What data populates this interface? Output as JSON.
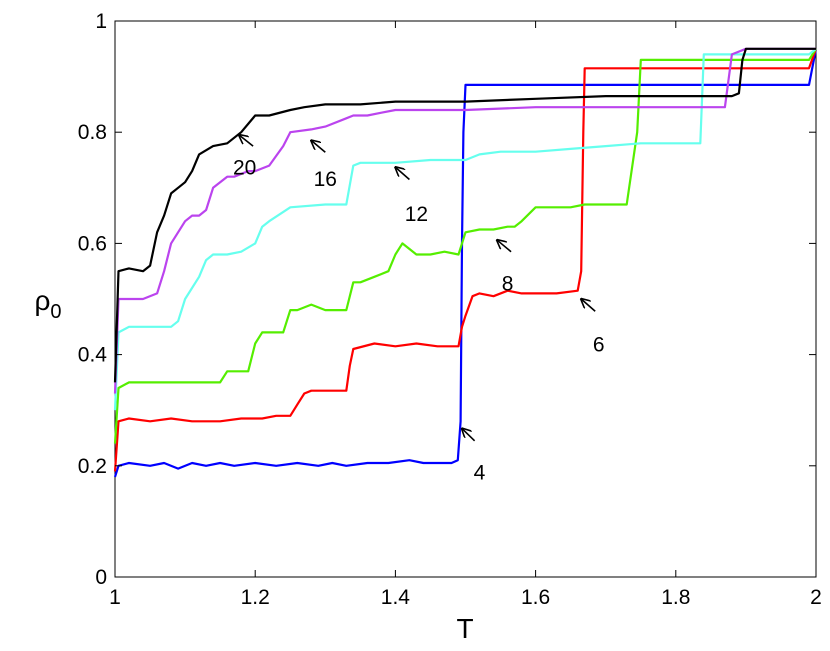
{
  "chart_data": {
    "type": "line",
    "title": "",
    "xlabel": "T",
    "ylabel": "ρ",
    "ylabel_sub": "0",
    "xlim": [
      1,
      2
    ],
    "ylim": [
      0,
      1
    ],
    "xticks": [
      1,
      1.2,
      1.4,
      1.6,
      1.8,
      2
    ],
    "yticks": [
      0,
      0.2,
      0.4,
      0.6,
      0.8,
      1
    ],
    "xtick_labels": [
      "1",
      "1.2",
      "1.4",
      "1.6",
      "1.8",
      "2"
    ],
    "ytick_labels": [
      "0",
      "0.2",
      "0.4",
      "0.6",
      "0.8",
      "1"
    ],
    "grid": false,
    "series": [
      {
        "color": "#0000ff",
        "x": [
          1.0,
          1.005,
          1.02,
          1.05,
          1.07,
          1.09,
          1.11,
          1.13,
          1.15,
          1.17,
          1.2,
          1.23,
          1.26,
          1.29,
          1.31,
          1.33,
          1.36,
          1.39,
          1.42,
          1.44,
          1.46,
          1.48,
          1.489,
          1.493,
          1.495,
          1.497,
          1.5,
          1.55,
          1.6,
          1.7,
          1.8,
          1.9,
          1.99,
          2.0
        ],
        "y": [
          0.18,
          0.2,
          0.205,
          0.2,
          0.205,
          0.195,
          0.205,
          0.2,
          0.205,
          0.2,
          0.205,
          0.2,
          0.205,
          0.2,
          0.205,
          0.2,
          0.205,
          0.205,
          0.21,
          0.205,
          0.205,
          0.205,
          0.21,
          0.28,
          0.6,
          0.8,
          0.885,
          0.885,
          0.885,
          0.885,
          0.885,
          0.885,
          0.885,
          0.95
        ]
      },
      {
        "color": "#ff0000",
        "x": [
          1.0,
          1.005,
          1.02,
          1.05,
          1.08,
          1.11,
          1.15,
          1.18,
          1.21,
          1.23,
          1.25,
          1.26,
          1.27,
          1.28,
          1.3,
          1.33,
          1.335,
          1.34,
          1.37,
          1.4,
          1.43,
          1.46,
          1.49,
          1.495,
          1.5,
          1.51,
          1.52,
          1.54,
          1.56,
          1.58,
          1.6,
          1.63,
          1.66,
          1.665,
          1.668,
          1.67,
          1.75,
          1.8,
          1.9,
          1.99,
          2.0
        ],
        "y": [
          0.19,
          0.28,
          0.285,
          0.28,
          0.285,
          0.28,
          0.28,
          0.285,
          0.285,
          0.29,
          0.29,
          0.31,
          0.33,
          0.335,
          0.335,
          0.335,
          0.38,
          0.41,
          0.42,
          0.415,
          0.42,
          0.415,
          0.415,
          0.45,
          0.47,
          0.505,
          0.51,
          0.505,
          0.515,
          0.51,
          0.51,
          0.51,
          0.515,
          0.55,
          0.8,
          0.915,
          0.915,
          0.915,
          0.915,
          0.915,
          0.95
        ]
      },
      {
        "color": "#55ee00",
        "x": [
          1.0,
          1.005,
          1.02,
          1.05,
          1.08,
          1.1,
          1.12,
          1.13,
          1.15,
          1.16,
          1.17,
          1.19,
          1.2,
          1.21,
          1.23,
          1.24,
          1.25,
          1.26,
          1.28,
          1.3,
          1.33,
          1.34,
          1.35,
          1.37,
          1.39,
          1.4,
          1.41,
          1.43,
          1.45,
          1.47,
          1.49,
          1.495,
          1.5,
          1.52,
          1.54,
          1.56,
          1.57,
          1.58,
          1.6,
          1.62,
          1.65,
          1.67,
          1.73,
          1.745,
          1.75,
          1.8,
          1.9,
          1.99,
          2.0
        ],
        "y": [
          0.24,
          0.34,
          0.35,
          0.35,
          0.35,
          0.35,
          0.35,
          0.35,
          0.35,
          0.37,
          0.37,
          0.37,
          0.42,
          0.44,
          0.44,
          0.44,
          0.48,
          0.48,
          0.49,
          0.48,
          0.48,
          0.53,
          0.53,
          0.54,
          0.55,
          0.58,
          0.6,
          0.58,
          0.58,
          0.585,
          0.58,
          0.6,
          0.62,
          0.625,
          0.625,
          0.63,
          0.63,
          0.64,
          0.665,
          0.665,
          0.665,
          0.67,
          0.67,
          0.8,
          0.93,
          0.93,
          0.93,
          0.93,
          0.95
        ]
      },
      {
        "color": "#66ffee",
        "x": [
          1.0,
          1.005,
          1.02,
          1.05,
          1.07,
          1.08,
          1.09,
          1.1,
          1.12,
          1.13,
          1.14,
          1.16,
          1.18,
          1.2,
          1.21,
          1.22,
          1.25,
          1.3,
          1.32,
          1.33,
          1.34,
          1.35,
          1.4,
          1.45,
          1.5,
          1.52,
          1.55,
          1.6,
          1.65,
          1.7,
          1.75,
          1.8,
          1.82,
          1.835,
          1.84,
          1.9,
          1.99,
          2.0
        ],
        "y": [
          0.3,
          0.44,
          0.45,
          0.45,
          0.45,
          0.45,
          0.46,
          0.5,
          0.54,
          0.57,
          0.58,
          0.58,
          0.585,
          0.6,
          0.63,
          0.64,
          0.665,
          0.67,
          0.67,
          0.67,
          0.74,
          0.745,
          0.745,
          0.75,
          0.75,
          0.76,
          0.765,
          0.765,
          0.77,
          0.775,
          0.78,
          0.78,
          0.78,
          0.78,
          0.94,
          0.94,
          0.94,
          0.95
        ]
      },
      {
        "color": "#bb44ee",
        "x": [
          1.0,
          1.005,
          1.02,
          1.04,
          1.06,
          1.07,
          1.08,
          1.1,
          1.11,
          1.12,
          1.13,
          1.14,
          1.16,
          1.17,
          1.19,
          1.2,
          1.22,
          1.24,
          1.25,
          1.28,
          1.3,
          1.33,
          1.34,
          1.36,
          1.38,
          1.4,
          1.45,
          1.5,
          1.6,
          1.7,
          1.8,
          1.87,
          1.88,
          1.9,
          1.99,
          2.0
        ],
        "y": [
          0.33,
          0.5,
          0.5,
          0.5,
          0.51,
          0.55,
          0.6,
          0.64,
          0.65,
          0.65,
          0.66,
          0.7,
          0.72,
          0.72,
          0.73,
          0.73,
          0.74,
          0.775,
          0.8,
          0.805,
          0.81,
          0.825,
          0.83,
          0.83,
          0.835,
          0.84,
          0.84,
          0.84,
          0.845,
          0.845,
          0.845,
          0.845,
          0.94,
          0.95,
          0.95,
          0.95
        ]
      },
      {
        "color": "#000000",
        "x": [
          1.0,
          1.005,
          1.02,
          1.04,
          1.05,
          1.06,
          1.07,
          1.08,
          1.09,
          1.1,
          1.11,
          1.12,
          1.14,
          1.16,
          1.18,
          1.2,
          1.22,
          1.25,
          1.27,
          1.3,
          1.35,
          1.4,
          1.5,
          1.6,
          1.7,
          1.8,
          1.88,
          1.89,
          1.895,
          1.9,
          1.95,
          1.99,
          2.0
        ],
        "y": [
          0.35,
          0.55,
          0.555,
          0.55,
          0.56,
          0.62,
          0.65,
          0.69,
          0.7,
          0.71,
          0.73,
          0.76,
          0.775,
          0.78,
          0.8,
          0.83,
          0.83,
          0.84,
          0.845,
          0.85,
          0.85,
          0.855,
          0.855,
          0.86,
          0.865,
          0.865,
          0.865,
          0.87,
          0.93,
          0.95,
          0.95,
          0.95,
          0.95
        ]
      }
    ],
    "annotations": [
      {
        "label": "20",
        "text_x": 1.185,
        "text_y": 0.738,
        "arrow_from": [
          1.197,
          0.775
        ],
        "arrow_to": [
          1.177,
          0.795
        ]
      },
      {
        "label": "16",
        "text_x": 1.3,
        "text_y": 0.718,
        "arrow_from": [
          1.3,
          0.764
        ],
        "arrow_to": [
          1.28,
          0.785
        ]
      },
      {
        "label": "12",
        "text_x": 1.43,
        "text_y": 0.655,
        "arrow_from": [
          1.42,
          0.715
        ],
        "arrow_to": [
          1.4,
          0.737
        ]
      },
      {
        "label": "8",
        "text_x": 1.56,
        "text_y": 0.53,
        "arrow_from": [
          1.565,
          0.585
        ],
        "arrow_to": [
          1.545,
          0.606
        ]
      },
      {
        "label": "6",
        "text_x": 1.69,
        "text_y": 0.42,
        "arrow_from": [
          1.685,
          0.478
        ],
        "arrow_to": [
          1.665,
          0.5
        ]
      },
      {
        "label": "4",
        "text_x": 1.52,
        "text_y": 0.19,
        "arrow_from": [
          1.513,
          0.245
        ],
        "arrow_to": [
          1.495,
          0.267
        ]
      }
    ]
  }
}
